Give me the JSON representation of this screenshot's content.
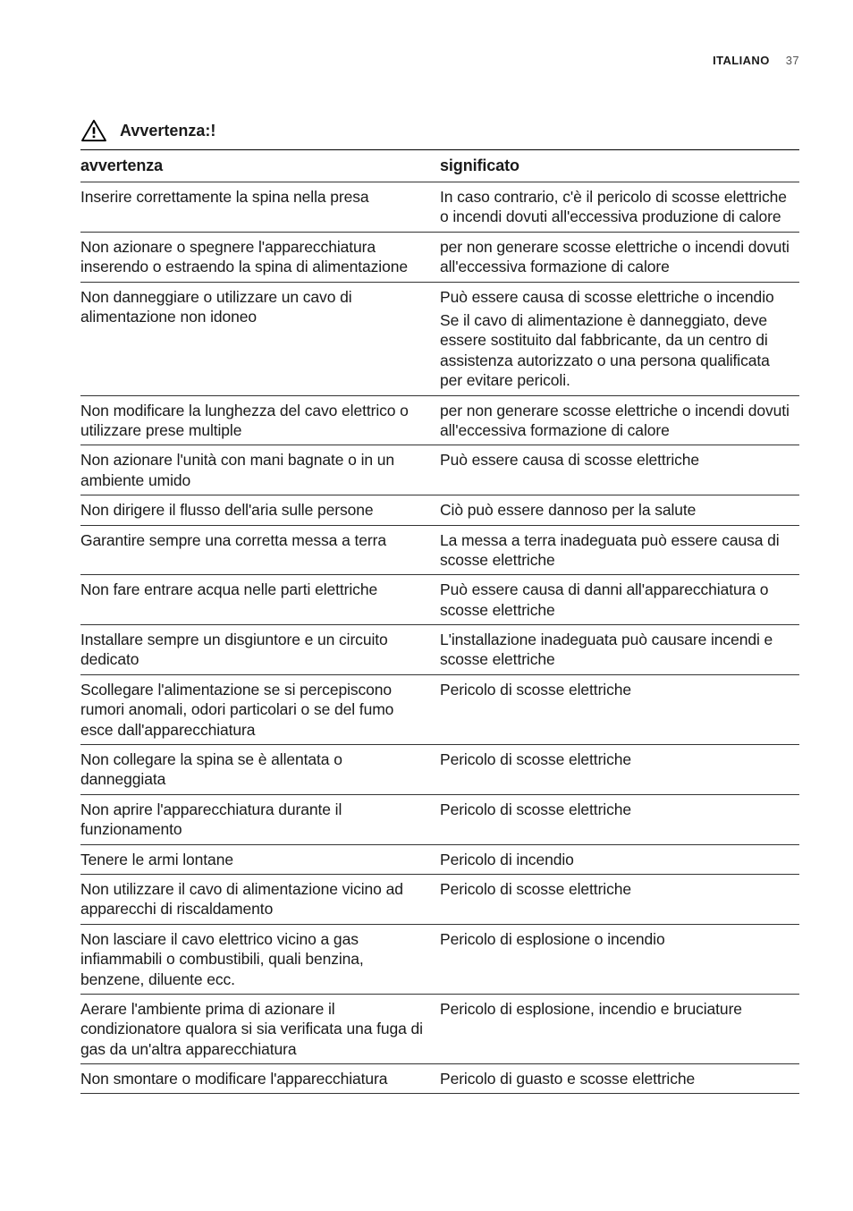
{
  "header": {
    "lang": "ITALIANO",
    "page": "37"
  },
  "title": "Avvertenza:!",
  "table": {
    "col1": "avvertenza",
    "col2": "significato",
    "rows": [
      {
        "a": "Inserire correttamente la spina nella presa",
        "b": "In caso contrario, c'è il pericolo di scosse elettriche o incendi dovuti all'eccessiva produzione di calore"
      },
      {
        "a": "Non azionare o spegnere l'apparecchiatura inserendo o estraendo la spina di alimentazione",
        "b": "per non generare scosse elettriche o incendi dovuti all'eccessiva formazione di calore"
      },
      {
        "a": "Non danneggiare o utilizzare un cavo di alimentazione non idoneo",
        "b_multi": [
          "Può essere causa di scosse elettriche o incendio",
          "Se il cavo di alimentazione è danneggiato, deve essere sostituito dal fabbricante, da un centro di assistenza autorizzato o una persona qualificata per evitare pericoli."
        ]
      },
      {
        "a": "Non modificare la lunghezza del cavo elettrico o utilizzare prese multiple",
        "b": "per non generare scosse elettriche o incendi dovuti all'eccessiva formazione di calore"
      },
      {
        "a": "Non azionare l'unità con mani bagnate o in un ambiente umido",
        "b": "Può essere causa di scosse elettriche"
      },
      {
        "a": "Non dirigere il flusso dell'aria sulle persone",
        "b": "Ciò può essere dannoso per la salute"
      },
      {
        "a": "Garantire sempre una corretta messa a terra",
        "b": "La messa a terra inadeguata può essere causa di scosse elettriche"
      },
      {
        "a": "Non fare entrare acqua nelle parti elettriche",
        "b": "Può essere causa di danni all'apparecchiatura o scosse elettriche"
      },
      {
        "a": "Installare sempre un disgiuntore e un circuito dedicato",
        "b": "L'installazione inadeguata può causare incendi e scosse elettriche"
      },
      {
        "a": "Scollegare l'alimentazione se si percepiscono rumori anomali, odori particolari o se del fumo esce dall'apparecchiatura",
        "b": "Pericolo di scosse elettriche"
      },
      {
        "a": "Non collegare la spina se è allentata o danneggiata",
        "b": "Pericolo di scosse elettriche"
      },
      {
        "a": "Non aprire l'apparecchiatura durante il funzionamento",
        "b": "Pericolo di scosse elettriche"
      },
      {
        "a": "Tenere le armi lontane",
        "b": "Pericolo di incendio"
      },
      {
        "a": "Non utilizzare il cavo di alimentazione vicino ad apparecchi di riscaldamento",
        "b": "Pericolo di scosse elettriche"
      },
      {
        "a": "Non lasciare il cavo elettrico vicino a gas infiammabili o combustibili, quali benzina, benzene, diluente ecc.",
        "b": "Pericolo di esplosione o incendio"
      },
      {
        "a": "Aerare l'ambiente prima di azionare il condizionatore qualora si sia verificata una fuga di gas da un'altra apparecchiatura",
        "b": "Pericolo di esplosione, incendio e bruciature"
      },
      {
        "a": "Non smontare o modificare l'apparecchiatura",
        "b": "Pericolo di guasto e scosse elettriche"
      }
    ]
  }
}
